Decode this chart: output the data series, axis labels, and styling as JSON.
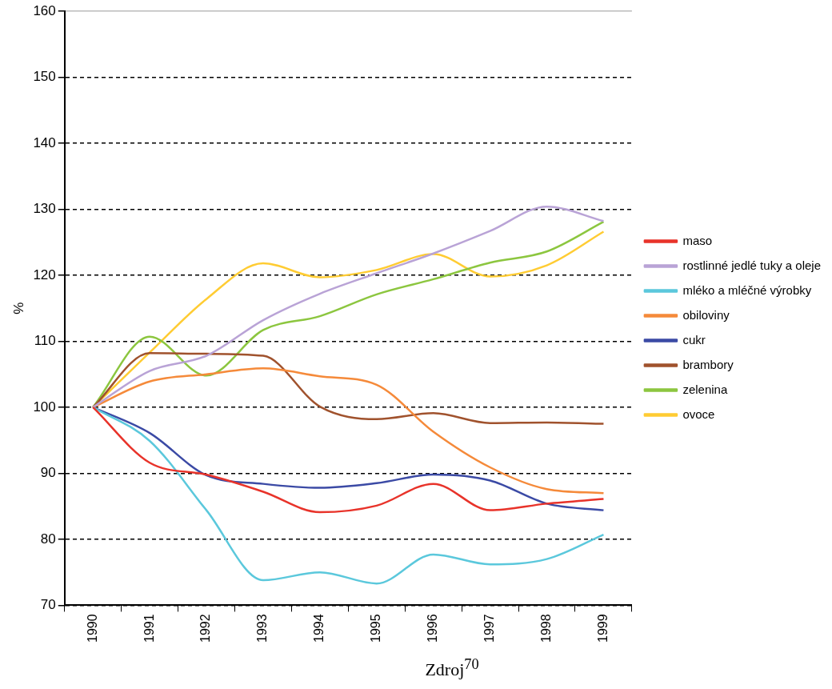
{
  "chart_data": {
    "type": "line",
    "ylabel": "%",
    "annotations": [
      "Zdroj$^{70}$"
    ],
    "categories": [
      "1990",
      "1991",
      "1992",
      "1993",
      "1994",
      "1995",
      "1996",
      "1997",
      "1998",
      "1999"
    ],
    "series": [
      {
        "name": "maso",
        "color": "#e8332a",
        "values": [
          100,
          91.6,
          89.8,
          87.2,
          84.1,
          85.1,
          88.4,
          84.4,
          85.4,
          86.1
        ]
      },
      {
        "name": "rostlinné jedlé tuky a oleje",
        "color": "#b9a3d6",
        "values": [
          100,
          105.5,
          107.8,
          113.2,
          117.2,
          120.3,
          123.3,
          126.7,
          130.4,
          128.2
        ]
      },
      {
        "name": "mléko a mléčné výrobky",
        "color": "#5bc8dc",
        "values": [
          100,
          94.9,
          84.4,
          73.8,
          75.0,
          73.3,
          77.7,
          76.2,
          77.0,
          80.7
        ]
      },
      {
        "name": "obiloviny",
        "color": "#f58a3a",
        "values": [
          100,
          103.9,
          105.0,
          105.9,
          104.7,
          103.4,
          96.3,
          90.9,
          87.6,
          87.0
        ]
      },
      {
        "name": "cukr",
        "color": "#3b4aa5",
        "values": [
          100,
          96.1,
          89.7,
          88.4,
          87.8,
          88.5,
          89.8,
          88.9,
          85.4,
          84.4
        ]
      },
      {
        "name": "brambory",
        "color": "#a0522d",
        "values": [
          100,
          108.2,
          108.1,
          107.8,
          100.1,
          98.2,
          99.1,
          97.6,
          97.7,
          97.5
        ]
      },
      {
        "name": "zelenina",
        "color": "#8cc63f",
        "values": [
          100,
          110.7,
          104.8,
          111.7,
          113.8,
          117.1,
          119.4,
          121.9,
          123.6,
          128.1
        ]
      },
      {
        "name": "ovoce",
        "color": "#ffcc33",
        "values": [
          100,
          108.3,
          116.4,
          121.8,
          119.7,
          120.8,
          123.2,
          119.8,
          121.5,
          126.6
        ]
      }
    ],
    "ylim": [
      70,
      160
    ],
    "yticks": [
      70,
      80,
      90,
      100,
      110,
      120,
      130,
      140,
      150,
      160
    ],
    "grid": "y",
    "legend": "right",
    "marker": "none",
    "line_style": "solid"
  }
}
